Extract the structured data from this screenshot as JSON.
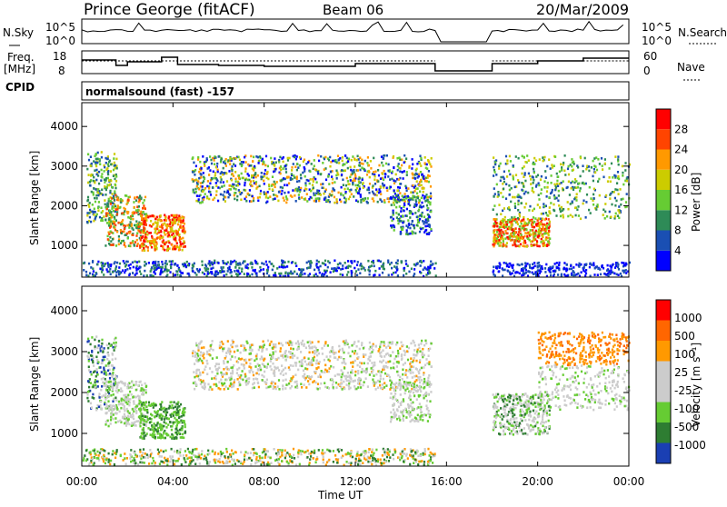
{
  "header": {
    "title": "Prince George (fitACF)",
    "beam": "Beam 06",
    "date": "20/Mar/2009",
    "cpid_label": "CPID",
    "cpid_text": "normalsound (fast) -157"
  },
  "top_panels": {
    "nsky_label": "N.Sky",
    "nsky_ticks": [
      "10^5",
      "10^0"
    ],
    "nsearch_label": "N.Search",
    "nsearch_ticks": [
      "10^5",
      "10^0"
    ],
    "freq_label_1": "Freq.",
    "freq_label_2": "[MHz]",
    "freq_ticks": [
      "18",
      "8"
    ],
    "nave_label": "Nave",
    "nave_ticks": [
      "60",
      "0"
    ]
  },
  "chart_data": [
    {
      "type": "heatmap",
      "name": "power",
      "ylabel": "Slant Range [km]",
      "y_ticks": [
        "4000",
        "3000",
        "2000",
        "1000"
      ],
      "ylim": [
        200,
        4600
      ],
      "colorbar_label": "Power [dB]",
      "colorbar_ticks": [
        "28",
        "24",
        "20",
        "16",
        "12",
        "8",
        "4"
      ],
      "colors": [
        "#0000ff",
        "#1a4fb3",
        "#2e8b57",
        "#66cc33",
        "#cccc00",
        "#ff9900",
        "#ff4400",
        "#ff0000"
      ]
    },
    {
      "type": "heatmap",
      "name": "velocity",
      "ylabel": "Slant Range [km]",
      "y_ticks": [
        "4000",
        "3000",
        "2000",
        "1000"
      ],
      "ylim": [
        200,
        4600
      ],
      "colorbar_label": "Velocity [m s⁻¹]",
      "colorbar_ticks": [
        "1000",
        "500",
        "100",
        "25",
        "-25",
        "-100",
        "-500",
        "-1000"
      ],
      "colors": [
        "#1a3fb3",
        "#2e7d32",
        "#66cc33",
        "#cccccc",
        "#cccccc",
        "#ff9900",
        "#ff6600",
        "#ff0000"
      ]
    }
  ],
  "x_axis": {
    "ticks": [
      "00:00",
      "04:00",
      "08:00",
      "12:00",
      "16:00",
      "20:00",
      "00:00"
    ],
    "label": "Time UT"
  }
}
